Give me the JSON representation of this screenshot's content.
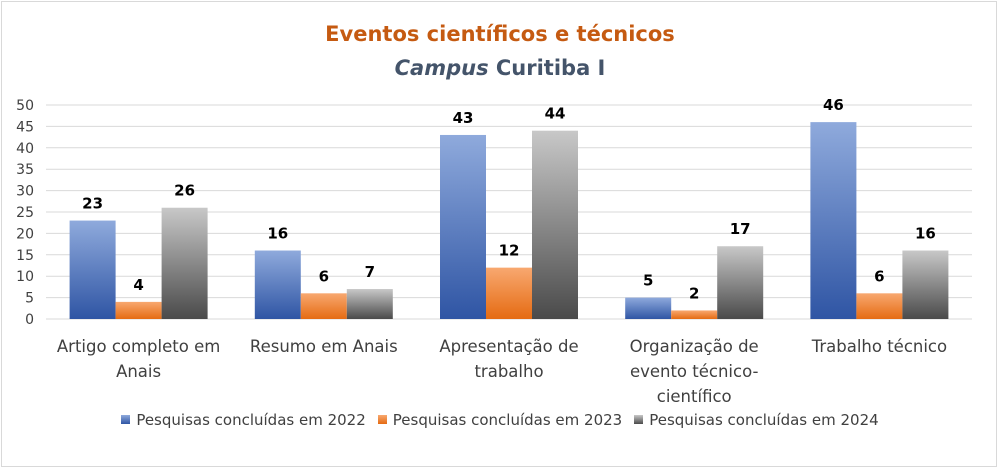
{
  "chart_data": {
    "type": "bar",
    "title": "Eventos científicos e técnicos",
    "subtitle_italic": "Campus",
    "subtitle_rest": " Curitiba I",
    "categories": [
      [
        "Artigo completo em",
        "Anais"
      ],
      [
        "Resumo em Anais"
      ],
      [
        "Apresentação de",
        "trabalho"
      ],
      [
        "Organização de",
        "evento técnico-",
        "científico"
      ],
      [
        "Trabalho técnico"
      ]
    ],
    "series": [
      {
        "name": "Pesquisas concluídas em 2022",
        "values": [
          23,
          16,
          43,
          5,
          46
        ],
        "color": "#4472c4"
      },
      {
        "name": "Pesquisas concluídas em 2023",
        "values": [
          4,
          6,
          12,
          2,
          6
        ],
        "color": "#ed7d31"
      },
      {
        "name": "Pesquisas concluídas em 2024",
        "values": [
          26,
          7,
          44,
          17,
          16
        ],
        "color": "#7f7f7f"
      }
    ],
    "ylim": [
      0,
      50
    ],
    "yticks": [
      "0",
      "5",
      "10",
      "15",
      "20",
      "25",
      "30",
      "35",
      "40",
      "45",
      "50"
    ],
    "grid": true,
    "legend_position": "bottom"
  }
}
